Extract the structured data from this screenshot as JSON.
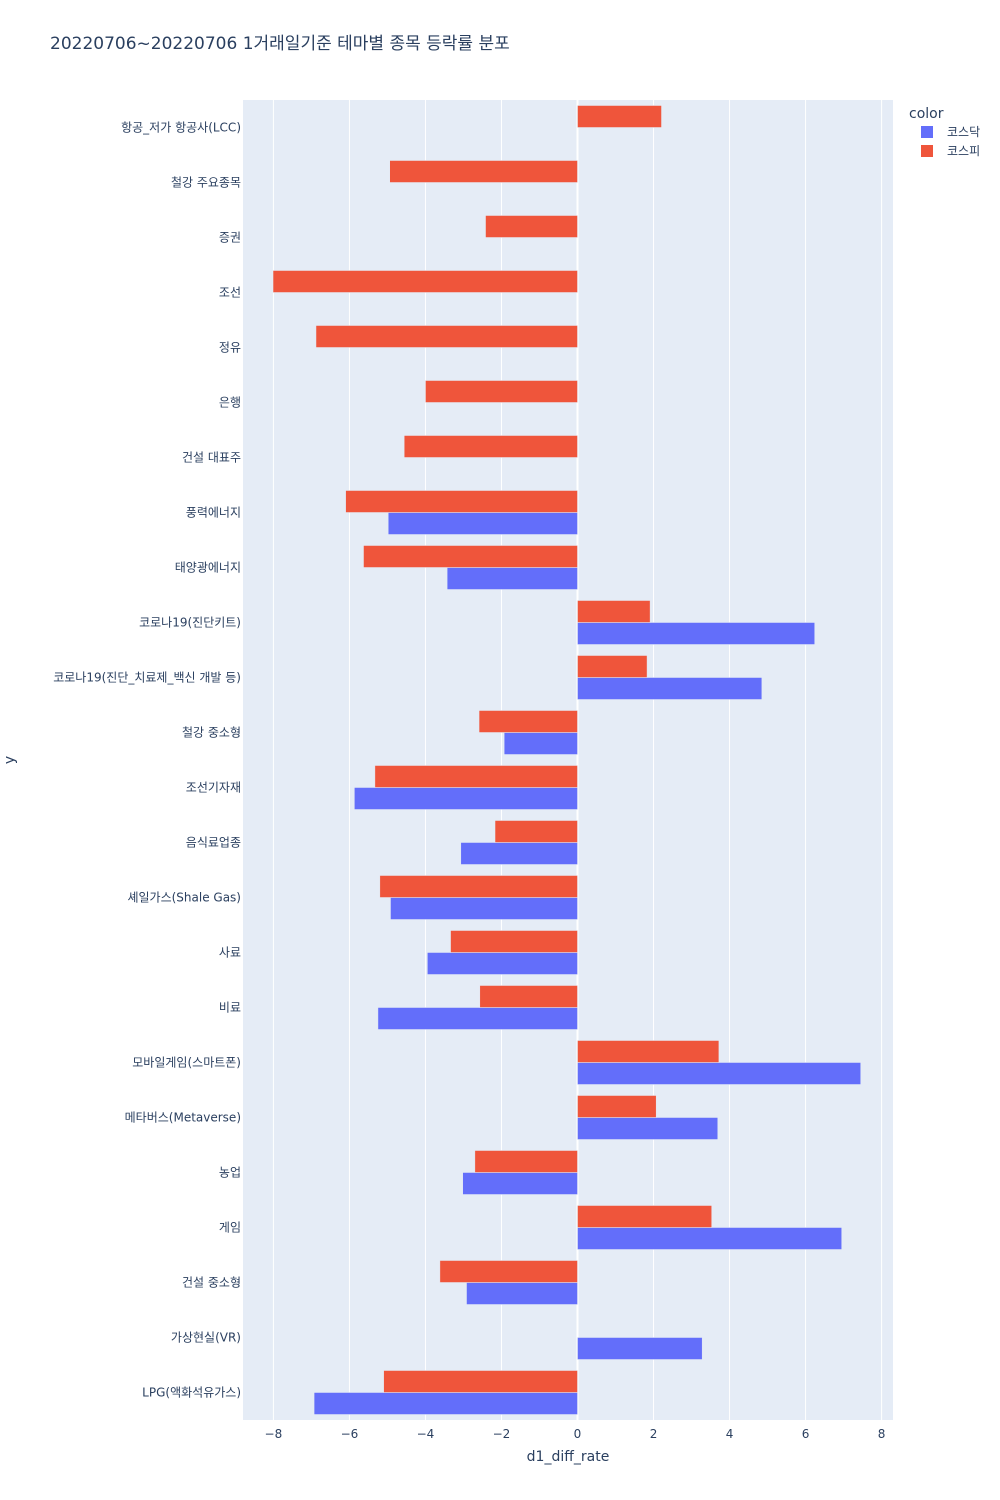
{
  "chart_data": {
    "type": "bar",
    "orientation": "horizontal",
    "title": "20220706~20220706 1거래일기준 테마별 종목 등락률 분포",
    "xlabel": "d1_diff_rate",
    "ylabel": "y",
    "xlim": [
      -8.8,
      8.3
    ],
    "xticks": [
      -8,
      -6,
      -4,
      -2,
      0,
      2,
      4,
      6,
      8
    ],
    "xtick_labels": [
      "−8",
      "−6",
      "−4",
      "−2",
      "0",
      "2",
      "4",
      "6",
      "8"
    ],
    "grid": true,
    "legend": {
      "title": "color",
      "placement": "top-right"
    },
    "categories": [
      "항공_저가 항공사(LCC)",
      "철강 주요종목",
      "증권",
      "조선",
      "정유",
      "은행",
      "건설 대표주",
      "풍력에너지",
      "태양광에너지",
      "코로나19(진단키트)",
      "코로나19(진단_치료제_백신 개발 등)",
      "철강 중소형",
      "조선기자재",
      "음식료업종",
      "셰일가스(Shale Gas)",
      "사료",
      "비료",
      "모바일게임(스마트폰)",
      "메타버스(Metaverse)",
      "농업",
      "게임",
      "건설 중소형",
      "가상현실(VR)",
      "LPG(액화석유가스)"
    ],
    "series": [
      {
        "name": "코스닥",
        "color": "#636efa",
        "values": [
          null,
          null,
          null,
          null,
          null,
          null,
          null,
          -4.98,
          -3.43,
          6.24,
          4.85,
          -1.93,
          -5.87,
          -3.07,
          -4.92,
          -3.95,
          -5.25,
          7.45,
          3.69,
          -3.02,
          6.95,
          -2.92,
          3.28,
          -6.93
        ]
      },
      {
        "name": "코스피",
        "color": "#ef553b",
        "values": [
          2.21,
          -4.94,
          -2.42,
          -8.01,
          -6.88,
          -4.0,
          -4.56,
          -6.1,
          -5.63,
          1.91,
          1.83,
          -2.59,
          -5.33,
          -2.17,
          -5.2,
          -3.34,
          -2.57,
          3.72,
          2.07,
          -2.7,
          3.53,
          -3.62,
          null,
          -5.1
        ]
      }
    ]
  }
}
